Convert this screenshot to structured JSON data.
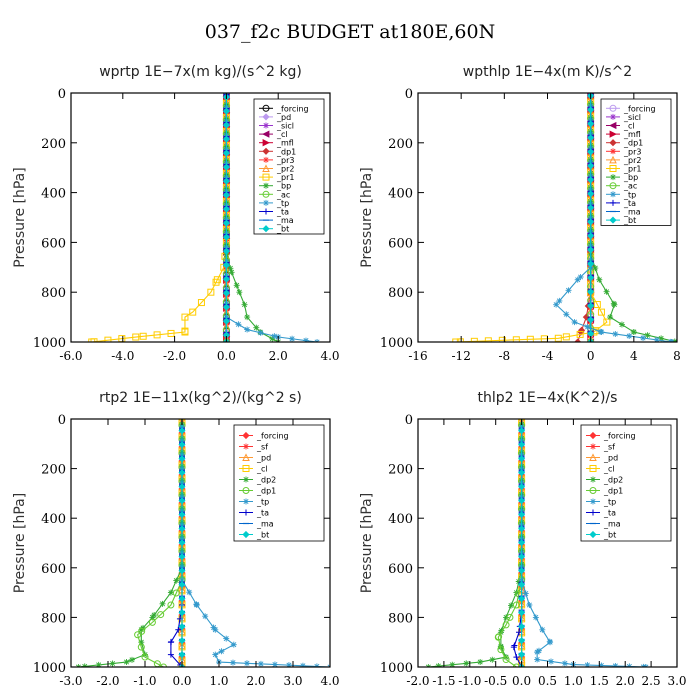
{
  "page_title": "037_f2c  BUDGET at180E,60N",
  "chart_data": [
    {
      "type": "line",
      "title": "wprtp  1E−7x(m kg)/(s^2 kg)",
      "ylabel": "Pressure [hPa]",
      "xlim": [
        -6,
        4
      ],
      "ylim": [
        1000,
        0
      ],
      "xticks": [
        "-6.0",
        "-4.0",
        "-2.0",
        "0.0",
        "2.0",
        "4.0"
      ],
      "xtick_values": [
        -6,
        -4,
        -2,
        0,
        2,
        4
      ],
      "yticks": [
        "0",
        "200",
        "400",
        "600",
        "800",
        "1000"
      ],
      "ytick_values": [
        0,
        200,
        400,
        600,
        800,
        1000
      ],
      "legend_position": "top-right",
      "series": [
        {
          "name": "_forcing",
          "color": "#000000",
          "marker": "circle",
          "p": [
            0,
            1000
          ],
          "x": [
            0,
            0
          ]
        },
        {
          "name": "_pd",
          "color": "#bb99ee",
          "marker": "diamond",
          "p": [
            0,
            1000
          ],
          "x": [
            0,
            0
          ]
        },
        {
          "name": "_sicl",
          "color": "#9933cc",
          "marker": "star",
          "p": [
            0,
            1000
          ],
          "x": [
            0,
            0
          ]
        },
        {
          "name": "_cl",
          "color": "#990066",
          "marker": "triangle-left",
          "p": [
            0,
            1000
          ],
          "x": [
            0,
            0
          ]
        },
        {
          "name": "_mfl",
          "color": "#cc0033",
          "marker": "triangle-right",
          "p": [
            0,
            1000
          ],
          "x": [
            0,
            0
          ]
        },
        {
          "name": "_dp1",
          "color": "#cc3333",
          "marker": "diamond",
          "p": [
            0,
            1000
          ],
          "x": [
            0,
            0
          ]
        },
        {
          "name": "_pr3",
          "color": "#ff3333",
          "marker": "star",
          "p": [
            0,
            1000
          ],
          "x": [
            0,
            0
          ]
        },
        {
          "name": "_pr2",
          "color": "#ff9933",
          "marker": "triangle",
          "p": [
            0,
            1000
          ],
          "x": [
            0,
            0
          ]
        },
        {
          "name": "_pr1",
          "color": "#ffcc00",
          "marker": "square",
          "p": [
            0,
            600,
            700,
            760,
            800,
            880,
            900,
            960,
            980,
            1000
          ],
          "x": [
            0,
            0,
            -0.1,
            -0.4,
            -0.6,
            -1.3,
            -1.6,
            -1.6,
            -3.5,
            -5.2
          ]
        },
        {
          "name": "_bp",
          "color": "#33aa33",
          "marker": "star",
          "p": [
            0,
            650,
            720,
            800,
            850,
            900,
            960,
            1000
          ],
          "x": [
            0,
            0,
            0.2,
            0.5,
            0.7,
            0.8,
            1.3,
            2.0
          ]
        },
        {
          "name": "_ac",
          "color": "#66cc33",
          "marker": "circle",
          "p": [
            0,
            1000
          ],
          "x": [
            0,
            0
          ]
        },
        {
          "name": "_tp",
          "color": "#3399cc",
          "marker": "star",
          "p": [
            0,
            900,
            950,
            980,
            1000
          ],
          "x": [
            0,
            0,
            0.8,
            2.0,
            3.5
          ]
        },
        {
          "name": "_ta",
          "color": "#0000cc",
          "marker": "plus",
          "p": [
            0,
            1000
          ],
          "x": [
            0,
            0
          ]
        },
        {
          "name": "_ma",
          "color": "#0066cc",
          "marker": "dash",
          "p": [
            0,
            1000
          ],
          "x": [
            0,
            0
          ]
        },
        {
          "name": "_bt",
          "color": "#00cccc",
          "marker": "diamond",
          "p": [
            0,
            1000
          ],
          "x": [
            0,
            0
          ]
        }
      ]
    },
    {
      "type": "line",
      "title": "wpthlp  1E−4x(m K)/s^2",
      "ylabel": "Pressure [hPa]",
      "xlim": [
        -16,
        8
      ],
      "ylim": [
        1000,
        0
      ],
      "xticks": [
        "-16",
        "-12",
        "-8",
        "-4",
        "0",
        "4",
        "8"
      ],
      "xtick_values": [
        -16,
        -12,
        -8,
        -4,
        0,
        4,
        8
      ],
      "yticks": [
        "0",
        "200",
        "400",
        "600",
        "800",
        "1000"
      ],
      "ytick_values": [
        0,
        200,
        400,
        600,
        800,
        1000
      ],
      "legend_position": "top-right",
      "series": [
        {
          "name": "_forcing",
          "color": "#bb99ee",
          "marker": "circle",
          "p": [
            0,
            1000
          ],
          "x": [
            0,
            0
          ]
        },
        {
          "name": "_sicl",
          "color": "#9933cc",
          "marker": "star",
          "p": [
            0,
            1000
          ],
          "x": [
            0,
            0
          ]
        },
        {
          "name": "_cl",
          "color": "#990066",
          "marker": "triangle-left",
          "p": [
            0,
            1000
          ],
          "x": [
            0,
            0
          ]
        },
        {
          "name": "_mfl",
          "color": "#cc0033",
          "marker": "triangle-right",
          "p": [
            0,
            1000
          ],
          "x": [
            0,
            0
          ]
        },
        {
          "name": "_dp1",
          "color": "#cc3333",
          "marker": "diamond",
          "p": [
            0,
            800,
            900,
            960,
            1000
          ],
          "x": [
            0,
            0,
            -0.4,
            -0.9,
            -1.2
          ]
        },
        {
          "name": "_pr3",
          "color": "#ff3333",
          "marker": "star",
          "p": [
            0,
            1000
          ],
          "x": [
            0,
            0
          ]
        },
        {
          "name": "_pr2",
          "color": "#ff9933",
          "marker": "triangle",
          "p": [
            0,
            1000
          ],
          "x": [
            0,
            0
          ]
        },
        {
          "name": "_pr1",
          "color": "#ffcc00",
          "marker": "square",
          "p": [
            0,
            800,
            880,
            920,
            960,
            985,
            1000
          ],
          "x": [
            0,
            0,
            1.0,
            1.5,
            0.3,
            -3.0,
            -12.5
          ]
        },
        {
          "name": "_bp",
          "color": "#33aa33",
          "marker": "star",
          "p": [
            0,
            650,
            750,
            850,
            900,
            960,
            1000
          ],
          "x": [
            0,
            0,
            0.8,
            2.2,
            1.8,
            4.0,
            8.0
          ]
        },
        {
          "name": "_ac",
          "color": "#66cc33",
          "marker": "circle",
          "p": [
            0,
            1000
          ],
          "x": [
            0,
            0
          ]
        },
        {
          "name": "_tp",
          "color": "#3399cc",
          "marker": "star",
          "p": [
            0,
            700,
            750,
            850,
            920,
            960,
            1000
          ],
          "x": [
            0,
            0,
            -1.2,
            -3.2,
            -1.5,
            1.0,
            7.5
          ]
        },
        {
          "name": "_ta",
          "color": "#0000cc",
          "marker": "plus",
          "p": [
            0,
            1000
          ],
          "x": [
            0,
            0
          ]
        },
        {
          "name": "_ma",
          "color": "#0066cc",
          "marker": "dash",
          "p": [
            0,
            1000
          ],
          "x": [
            0,
            0
          ]
        },
        {
          "name": "_bt",
          "color": "#00cccc",
          "marker": "diamond",
          "p": [
            0,
            1000
          ],
          "x": [
            0,
            0
          ]
        }
      ]
    },
    {
      "type": "line",
      "title": "rtp2  1E−11x(kg^2)/(kg^2 s)",
      "ylabel": "Pressure [hPa]",
      "xlim": [
        -3,
        4
      ],
      "ylim": [
        1000,
        0
      ],
      "xticks": [
        "-3.0",
        "-2.0",
        "-1.0",
        "0.0",
        "1.0",
        "2.0",
        "3.0",
        "4.0"
      ],
      "xtick_values": [
        -3,
        -2,
        -1,
        0,
        1,
        2,
        3,
        4
      ],
      "yticks": [
        "0",
        "200",
        "400",
        "600",
        "800",
        "1000"
      ],
      "ytick_values": [
        0,
        200,
        400,
        600,
        800,
        1000
      ],
      "legend_position": "top-right",
      "series": [
        {
          "name": "_forcing",
          "color": "#ff3333",
          "marker": "diamond",
          "p": [
            0,
            1000
          ],
          "x": [
            0,
            0
          ]
        },
        {
          "name": "_sf",
          "color": "#ff3333",
          "marker": "star",
          "p": [
            0,
            1000
          ],
          "x": [
            0,
            0
          ]
        },
        {
          "name": "_pd",
          "color": "#ff9933",
          "marker": "triangle",
          "p": [
            0,
            1000
          ],
          "x": [
            0,
            0
          ]
        },
        {
          "name": "_cl",
          "color": "#ffcc00",
          "marker": "square",
          "p": [
            0,
            1000
          ],
          "x": [
            0,
            0
          ]
        },
        {
          "name": "_dp2",
          "color": "#33aa33",
          "marker": "star",
          "p": [
            0,
            600,
            700,
            800,
            850,
            900,
            950,
            980,
            1000
          ],
          "x": [
            0,
            0,
            -0.3,
            -0.8,
            -1.1,
            -1.1,
            -1.0,
            -1.5,
            -2.8
          ]
        },
        {
          "name": "_dp1",
          "color": "#66cc33",
          "marker": "circle",
          "p": [
            0,
            650,
            750,
            820,
            870,
            920,
            960,
            1000
          ],
          "x": [
            0,
            0,
            -0.3,
            -0.8,
            -1.2,
            -1.1,
            -1.0,
            -0.5
          ]
        },
        {
          "name": "_tp",
          "color": "#3399cc",
          "marker": "star",
          "p": [
            0,
            650,
            750,
            850,
            910,
            950,
            980,
            1000
          ],
          "x": [
            0,
            0,
            0.4,
            0.9,
            1.4,
            0.9,
            1.0,
            4.0
          ]
        },
        {
          "name": "_ta",
          "color": "#0000cc",
          "marker": "plus",
          "p": [
            0,
            750,
            850,
            900,
            950,
            1000
          ],
          "x": [
            0,
            0,
            -0.1,
            -0.3,
            -0.3,
            0
          ]
        },
        {
          "name": "_ma",
          "color": "#0066cc",
          "marker": "dash",
          "p": [
            0,
            1000
          ],
          "x": [
            0,
            0
          ]
        },
        {
          "name": "_bt",
          "color": "#00cccc",
          "marker": "diamond",
          "p": [
            0,
            1000
          ],
          "x": [
            0,
            0
          ]
        }
      ]
    },
    {
      "type": "line",
      "title": "thlp2  1E−4x(K^2)/s",
      "ylabel": "Pressure [hPa]",
      "xlim": [
        -2,
        3
      ],
      "ylim": [
        1000,
        0
      ],
      "xticks": [
        "-2.0",
        "-1.5",
        "-1.0",
        "-0.5",
        "0.0",
        "0.5",
        "1.0",
        "1.5",
        "2.0",
        "2.5",
        "3.0"
      ],
      "xtick_values": [
        -2,
        -1.5,
        -1,
        -0.5,
        0,
        0.5,
        1,
        1.5,
        2,
        2.5,
        3
      ],
      "yticks": [
        "0",
        "200",
        "400",
        "600",
        "800",
        "1000"
      ],
      "ytick_values": [
        0,
        200,
        400,
        600,
        800,
        1000
      ],
      "legend_position": "top-right",
      "series": [
        {
          "name": "_forcing",
          "color": "#ff3333",
          "marker": "diamond",
          "p": [
            0,
            1000
          ],
          "x": [
            0,
            0
          ]
        },
        {
          "name": "_sf",
          "color": "#ff3333",
          "marker": "star",
          "p": [
            0,
            1000
          ],
          "x": [
            0,
            0
          ]
        },
        {
          "name": "_pd",
          "color": "#ff9933",
          "marker": "triangle",
          "p": [
            0,
            1000
          ],
          "x": [
            0,
            0
          ]
        },
        {
          "name": "_cl",
          "color": "#ffcc00",
          "marker": "square",
          "p": [
            0,
            1000
          ],
          "x": [
            0,
            0
          ]
        },
        {
          "name": "_dp2",
          "color": "#33aa33",
          "marker": "star",
          "p": [
            0,
            600,
            700,
            800,
            860,
            920,
            960,
            980,
            1000
          ],
          "x": [
            0,
            0,
            -0.1,
            -0.3,
            -0.4,
            -0.4,
            -0.3,
            -0.8,
            -1.8
          ]
        },
        {
          "name": "_dp1",
          "color": "#66cc33",
          "marker": "circle",
          "p": [
            0,
            650,
            750,
            830,
            880,
            930,
            970,
            1000
          ],
          "x": [
            0,
            0,
            -0.1,
            -0.3,
            -0.45,
            -0.4,
            -0.3,
            -0.1
          ]
        },
        {
          "name": "_tp",
          "color": "#3399cc",
          "marker": "star",
          "p": [
            0,
            650,
            750,
            850,
            900,
            940,
            970,
            990,
            1000
          ],
          "x": [
            0,
            0,
            0.15,
            0.4,
            0.55,
            0.3,
            0.3,
            1.0,
            2.4
          ]
        },
        {
          "name": "_ta",
          "color": "#0000cc",
          "marker": "plus",
          "p": [
            0,
            780,
            860,
            920,
            960,
            1000
          ],
          "x": [
            0,
            0,
            -0.05,
            -0.15,
            -0.1,
            0
          ]
        },
        {
          "name": "_ma",
          "color": "#0066cc",
          "marker": "dash",
          "p": [
            0,
            1000
          ],
          "x": [
            0,
            0
          ]
        },
        {
          "name": "_bt",
          "color": "#00cccc",
          "marker": "diamond",
          "p": [
            0,
            1000
          ],
          "x": [
            0,
            0
          ]
        }
      ]
    }
  ]
}
